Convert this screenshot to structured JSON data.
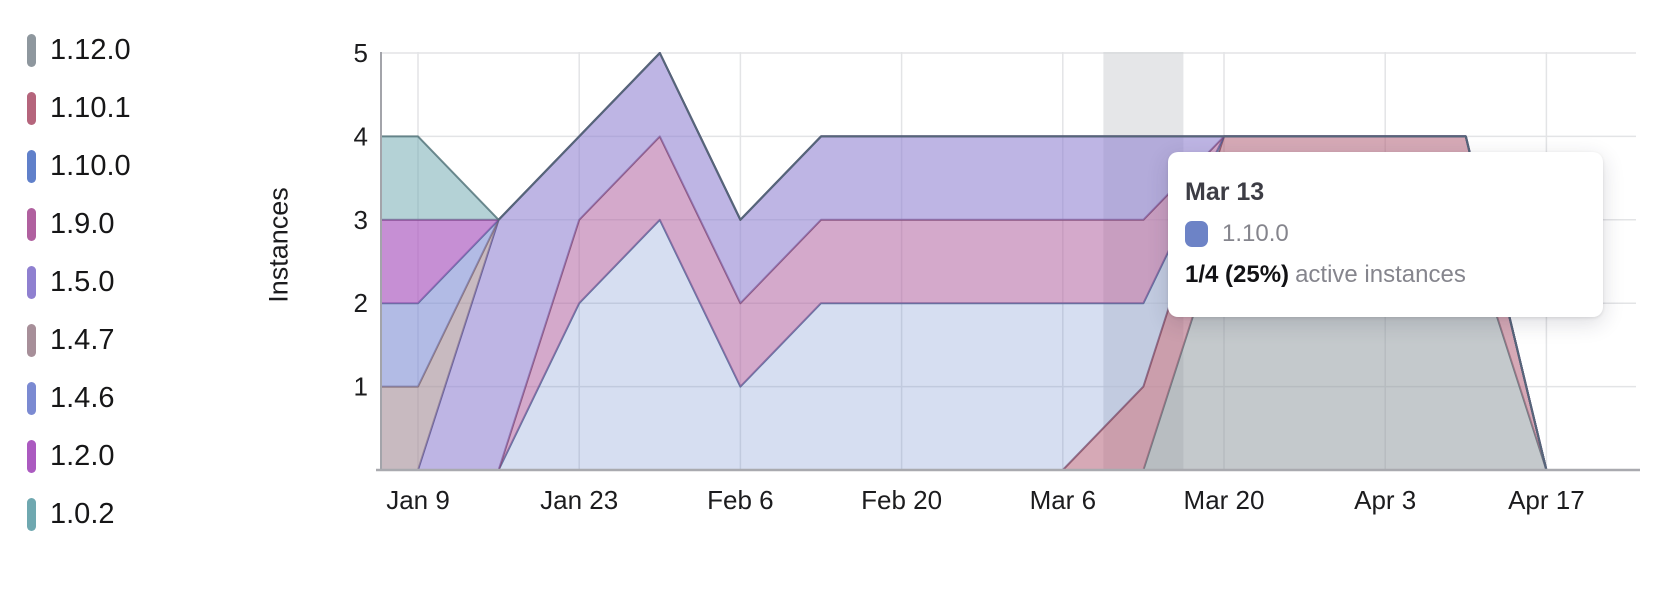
{
  "y_axis": {
    "label": "Instances",
    "ticks": [
      {
        "label": "5",
        "value": 5
      },
      {
        "label": "4",
        "value": 4
      },
      {
        "label": "3",
        "value": 3
      },
      {
        "label": "2",
        "value": 2
      },
      {
        "label": "1",
        "value": 1
      }
    ]
  },
  "x_axis": {
    "ticks": [
      {
        "label": "Jan 9",
        "week": 1
      },
      {
        "label": "Jan 23",
        "week": 3
      },
      {
        "label": "Feb 6",
        "week": 5
      },
      {
        "label": "Feb 20",
        "week": 7
      },
      {
        "label": "Mar 6",
        "week": 9
      },
      {
        "label": "Mar 20",
        "week": 11
      },
      {
        "label": "Apr 3",
        "week": 13
      },
      {
        "label": "Apr 17",
        "week": 15
      }
    ]
  },
  "tooltip": {
    "title": "Mar 13",
    "series_label": "1.10.0",
    "swatch_color": "#6d83c6",
    "value_bold": "1/4 (25%)",
    "value_suffix": "active instances"
  },
  "chart_data": {
    "type": "area",
    "stacked": true,
    "title": "",
    "xlabel": "",
    "ylabel": "Instances",
    "ylim": [
      0,
      5
    ],
    "grid": true,
    "legend_position": "left",
    "x": [
      "Jan 2",
      "Jan 9",
      "Jan 16",
      "Jan 23",
      "Jan 30",
      "Feb 6",
      "Feb 13",
      "Feb 20",
      "Feb 27",
      "Mar 6",
      "Mar 13",
      "Mar 20",
      "Mar 27",
      "Apr 3",
      "Apr 10",
      "Apr 17",
      "Apr 24"
    ],
    "series": [
      {
        "name": "1.12.0",
        "color": "#8e979e",
        "fill_alpha": 0.52,
        "stroke": "#5f6872",
        "values": [
          0,
          0,
          0,
          0,
          0,
          0,
          0,
          0,
          0,
          0,
          0,
          3,
          3,
          3,
          3,
          0,
          0
        ]
      },
      {
        "name": "1.10.1",
        "color": "#b5657c",
        "fill_alpha": 0.56,
        "stroke": "#83475d",
        "values": [
          0,
          0,
          0,
          0,
          0,
          0,
          0,
          0,
          0,
          0,
          1,
          1,
          1,
          1,
          1,
          0,
          0
        ]
      },
      {
        "name": "1.10.0",
        "color": "#6080ca",
        "fill_alpha": 0.26,
        "stroke": "#46588e",
        "values": [
          0,
          0,
          0,
          2,
          3,
          1,
          2,
          2,
          2,
          2,
          1,
          0,
          0,
          0,
          0,
          0,
          0
        ]
      },
      {
        "name": "1.9.0",
        "color": "#b0609f",
        "fill_alpha": 0.54,
        "stroke": "#7a4470",
        "values": [
          0,
          0,
          0,
          1,
          1,
          1,
          1,
          1,
          1,
          1,
          1,
          0,
          0,
          0,
          0,
          0,
          0
        ]
      },
      {
        "name": "1.5.0",
        "color": "#8f80d0",
        "fill_alpha": 0.58,
        "stroke": "#564e8c",
        "values": [
          0,
          0,
          3,
          1,
          1,
          1,
          1,
          1,
          1,
          1,
          1,
          0,
          0,
          0,
          0,
          0,
          0
        ]
      },
      {
        "name": "1.4.7",
        "color": "#a78f99",
        "fill_alpha": 0.62,
        "stroke": "#7a636e",
        "values": [
          1,
          1,
          0,
          0,
          0,
          0,
          0,
          0,
          0,
          0,
          0,
          0,
          0,
          0,
          0,
          0,
          0
        ]
      },
      {
        "name": "1.4.6",
        "color": "#7b8ad2",
        "fill_alpha": 0.58,
        "stroke": "#515a92",
        "values": [
          1,
          1,
          0,
          0,
          0,
          0,
          0,
          0,
          0,
          0,
          0,
          0,
          0,
          0,
          0,
          0,
          0
        ]
      },
      {
        "name": "1.2.0",
        "color": "#ab5ac0",
        "fill_alpha": 0.68,
        "stroke": "#7b3f87",
        "values": [
          1,
          1,
          0,
          0,
          0,
          0,
          0,
          0,
          0,
          0,
          0,
          0,
          0,
          0,
          0,
          0,
          0
        ]
      },
      {
        "name": "1.0.2",
        "color": "#6fa8b0",
        "fill_alpha": 0.52,
        "stroke": "#4e6f76",
        "values": [
          1,
          1,
          0,
          0,
          0,
          0,
          0,
          0,
          0,
          0,
          0,
          0,
          0,
          0,
          0,
          0,
          0
        ]
      }
    ],
    "hover": {
      "index": 10,
      "label": "Mar 13",
      "series": "1.10.0",
      "value": "1/4 (25%) active instances",
      "highlight_color": "#d4d5d8"
    }
  },
  "colors": {
    "grid_line": "#e3e4e6",
    "axis_line": "#a3a4aa",
    "baseline": "#a9aaaf",
    "tick_text": "#1c1c1e"
  }
}
